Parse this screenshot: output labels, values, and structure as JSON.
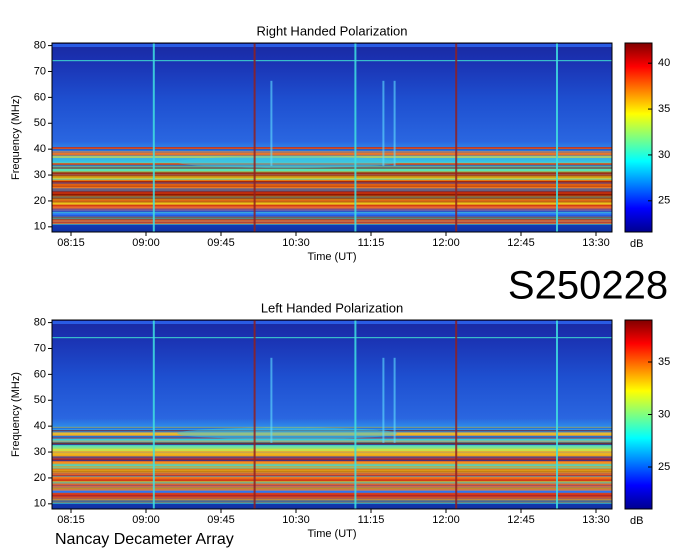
{
  "chart_data": [
    {
      "type": "heatmap",
      "title": "Right Handed Polarization",
      "xlabel": "Time (UT)",
      "ylabel": "Frequency (MHz)",
      "xlim": [
        8.06,
        13.66
      ],
      "xticks": [
        {
          "value": 8.25,
          "label": "08:15"
        },
        {
          "value": 9.0,
          "label": "09:00"
        },
        {
          "value": 9.75,
          "label": "09:45"
        },
        {
          "value": 10.5,
          "label": "10:30"
        },
        {
          "value": 11.25,
          "label": "11:15"
        },
        {
          "value": 12.0,
          "label": "12:00"
        },
        {
          "value": 12.75,
          "label": "12:45"
        },
        {
          "value": 13.5,
          "label": "13:30"
        }
      ],
      "ylim": [
        8,
        81
      ],
      "yticks": [
        10,
        20,
        30,
        40,
        50,
        60,
        70,
        80
      ],
      "colorbar": {
        "label": "dB",
        "lim": [
          21.6,
          42.2
        ],
        "ticks": [
          25,
          30,
          35,
          40
        ]
      }
    },
    {
      "type": "heatmap",
      "title": "Left Handed Polarization",
      "xlabel": "Time (UT)",
      "ylabel": "Frequency (MHz)",
      "xlim": [
        8.06,
        13.66
      ],
      "xticks": [
        {
          "value": 8.25,
          "label": "08:15"
        },
        {
          "value": 9.0,
          "label": "09:00"
        },
        {
          "value": 9.75,
          "label": "09:45"
        },
        {
          "value": 10.5,
          "label": "10:30"
        },
        {
          "value": 11.25,
          "label": "11:15"
        },
        {
          "value": 12.0,
          "label": "12:00"
        },
        {
          "value": 12.75,
          "label": "12:45"
        },
        {
          "value": 13.5,
          "label": "13:30"
        }
      ],
      "ylim": [
        8,
        81
      ],
      "yticks": [
        10,
        20,
        30,
        40,
        50,
        60,
        70,
        80
      ],
      "colorbar": {
        "label": "dB",
        "lim": [
          21,
          39
        ],
        "ticks": [
          25,
          30,
          35
        ]
      }
    }
  ],
  "date_code": "S250228",
  "observatory": "Nancay Decameter Array"
}
